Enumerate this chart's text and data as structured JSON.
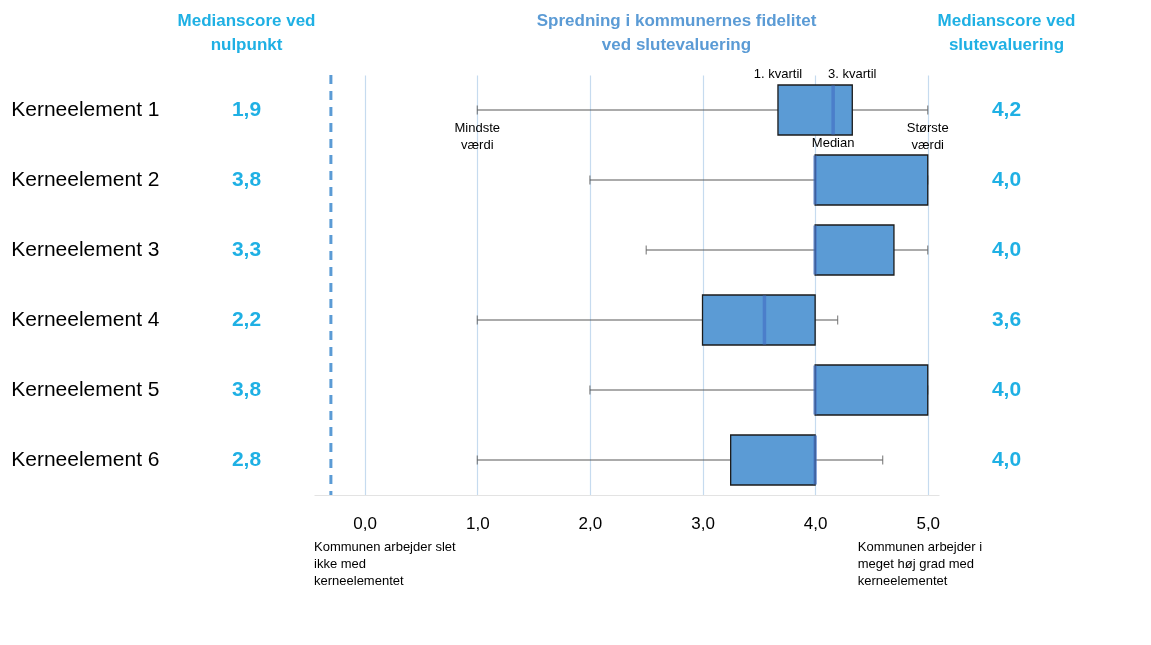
{
  "chart_data": [
    {
      "type": "other",
      "title": "Medianscore ved nulpunkt",
      "value_labels": [
        "1,9",
        "3,8",
        "3,3",
        "2,2",
        "3,8",
        "2,8"
      ],
      "color": "#1fb0e4"
    },
    {
      "type": "box",
      "orientation": "horizontal",
      "title": "Spredning i kommunernes fidelitet ved slutevaluering",
      "categories": [
        "Kerneelement 1",
        "Kerneelement 2",
        "Kerneelement 3",
        "Kerneelement 4",
        "Kerneelement 5",
        "Kerneelement 6"
      ],
      "color": "#5b9bd5",
      "boxes": [
        {
          "low": 1,
          "q1": 3.67,
          "median": 4.16,
          "q3": 4.33,
          "high": 5
        },
        {
          "low": 2,
          "q1": 4,
          "median": 4,
          "q3": 5,
          "high": 5
        },
        {
          "low": 2.5,
          "q1": 4,
          "median": 4,
          "q3": 4.7,
          "high": 5
        },
        {
          "low": 1,
          "q1": 3,
          "median": 3.55,
          "q3": 4,
          "high": 4.2
        },
        {
          "low": 2,
          "q1": 4,
          "median": 4,
          "q3": 5,
          "high": 5
        },
        {
          "low": 1,
          "q1": 3.25,
          "median": 4,
          "q3": 4,
          "high": 4.6
        }
      ],
      "xlim": [
        -0.45,
        5.1
      ],
      "xticks": [
        {
          "value": 0,
          "label": "0,0"
        },
        {
          "value": 1,
          "label": "1,0"
        },
        {
          "value": 2,
          "label": "2,0"
        },
        {
          "value": 3,
          "label": "3,0"
        },
        {
          "value": 4,
          "label": "4,0"
        },
        {
          "value": 5,
          "label": "5,0"
        }
      ],
      "grid": "x",
      "ref_lines": [
        {
          "axis": "x",
          "value": -0.3,
          "line_style": "dashed",
          "color": "#5b9bd5"
        }
      ],
      "annotations": [
        {
          "text": "1. kvartil",
          "x": 3.67,
          "y": "Kerneelement 1"
        },
        {
          "text": "3. kvartil",
          "x": 4.33,
          "y": "Kerneelement 1"
        },
        {
          "text": "Median",
          "x": 4.16,
          "y": "Kerneelement 1"
        },
        {
          "text": "Mindste værdi",
          "x": 1,
          "y": "Kerneelement 1"
        },
        {
          "text": "Største værdi",
          "x": 5,
          "y": "Kerneelement 1"
        },
        "Kommunen arbejder slet ikke med kerneelementet",
        "Kommunen arbejder i meget høj grad med kerneelementet"
      ]
    },
    {
      "type": "other",
      "title": "Medianscore ved slutevaluering",
      "value_labels": [
        "4,2",
        "4,0",
        "4,0",
        "3,6",
        "4,0",
        "4,0"
      ],
      "color": "#1fb0e4"
    }
  ]
}
